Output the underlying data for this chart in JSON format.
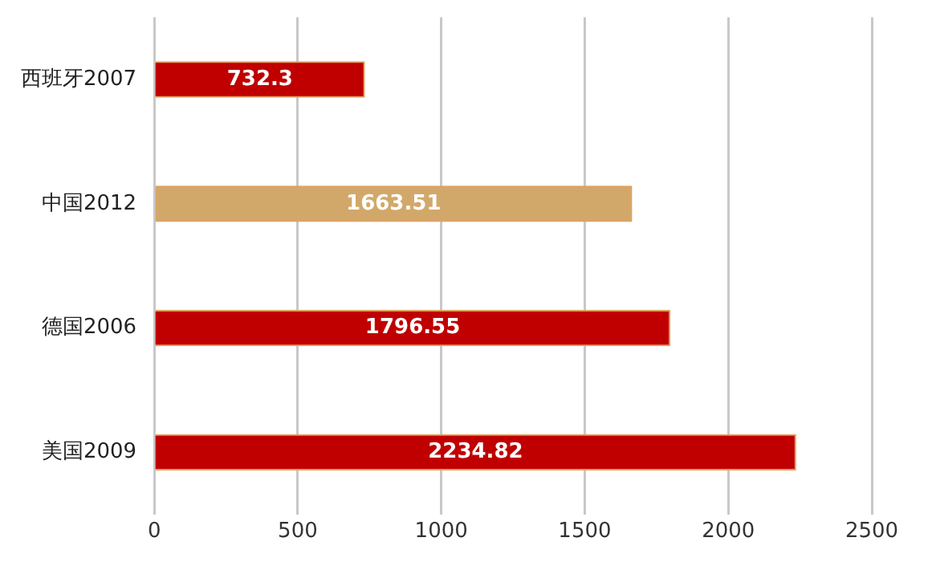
{
  "chart_data": {
    "type": "bar",
    "orientation": "horizontal",
    "categories": [
      "西班牙2007",
      "中国2012",
      "德国2006",
      "美国2009"
    ],
    "values": [
      732.3,
      1663.51,
      1796.55,
      2234.82
    ],
    "colors": [
      "#c00000",
      "#d2a86a",
      "#c00000",
      "#c00000"
    ],
    "xlim": [
      0,
      2500
    ],
    "xticks": [
      0,
      500,
      1000,
      1500,
      2000,
      2500
    ],
    "grid": "x",
    "legend": false,
    "data_labels": true
  }
}
